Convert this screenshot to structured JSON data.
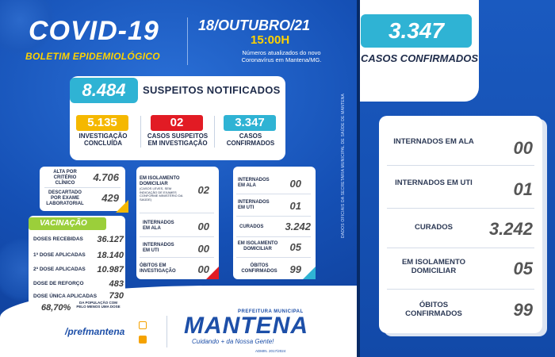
{
  "header": {
    "title": "COVID-19",
    "subtitle": "BOLETIM EPIDEMIOLÓGICO",
    "date": "18/OUTUBRO/21",
    "time": "15:00H",
    "update_note": "Números atualizados do novo Coronavírus em Mantena/MG."
  },
  "side_credit": "DADOS OFICIAIS DA SECRETARIA MUNICIPAL DE SAÚDE DE MANTENA",
  "suspects": {
    "total": "8.484",
    "total_label": "SUSPEITOS NOTIFICADOS",
    "investigation_done": "5.135",
    "investigation_done_label": "INVESTIGAÇÃO CONCLUÍDA",
    "under_investigation": "02",
    "under_investigation_label": "CASOS SUSPEITOS EM INVESTIGAÇÃO",
    "confirmed": "3.347",
    "confirmed_label": "CASOS CONFIRMADOS"
  },
  "discarded": {
    "clinical_label": "ALTA POR CRITÉRIO CLÍNICO",
    "clinical_value": "4.706",
    "lab_label": "DESCARTADO POR EXAME LABORATORIAL",
    "lab_value": "429"
  },
  "investigation_detail": {
    "home_isolation_label": "EM ISOLAMENTO DOMICILIAR",
    "home_isolation_note": "(CASOS LEVES, SEM INDICAÇÃO DE EXAMES CONFORME MINISTÉRIO DA SAÚDE)",
    "home_isolation_value": "02",
    "ward_label": "INTERNADOS EM ALA",
    "ward_value": "00",
    "icu_label": "INTERNADOS EM UTI",
    "icu_value": "00",
    "deaths_label": "ÓBITOS EM INVESTIGAÇÃO",
    "deaths_value": "00"
  },
  "confirmed_detail": {
    "ward_label": "INTERNADOS EM ALA",
    "ward_value": "00",
    "icu_label": "INTERNADOS EM UTI",
    "icu_value": "01",
    "cured_label": "CURADOS",
    "cured_value": "3.242",
    "isolation_label": "EM ISOLAMENTO DOMICILIAR",
    "isolation_value": "05",
    "deaths_label": "ÓBITOS CONFIRMADOS",
    "deaths_value": "99"
  },
  "vaccination": {
    "header": "VACINAÇÃO",
    "received_label": "DOSES RECEBIDAS",
    "received_value": "36.127",
    "first_label": "1ª DOSE APLICADAS",
    "first_value": "18.140",
    "second_label": "2ª DOSE APLICADAS",
    "second_value": "10.987",
    "booster_label": "DOSE DE REFORÇO",
    "booster_value": "483",
    "single_label": "DOSE ÚNICA APLICADAS",
    "single_value": "730",
    "percent_value": "68,70%",
    "percent_label": "DA POPULAÇÃO COM PELO MENOS UMA DOSE"
  },
  "footer": {
    "handle": "/prefmantena",
    "logo_top": "PREFEITURA MUNICIPAL",
    "logo_name": "MANTENA",
    "logo_slogan": "Cuidando + da Nossa Gente!",
    "logo_admin": "ADMIN. 2017/2024"
  },
  "right_panel": {
    "confirmed_value": "3.347",
    "confirmed_label": "CASOS CONFIRMADOS",
    "ward_label": "INTERNADOS EM ALA",
    "ward_value": "00",
    "icu_label": "INTERNADOS EM UTI",
    "icu_value": "01",
    "cured_label": "CURADOS",
    "cured_value": "3.242",
    "isolation_label": "EM ISOLAMENTO DOMICILIAR",
    "isolation_value": "05",
    "deaths_label": "ÓBITOS CONFIRMADOS",
    "deaths_value": "99"
  },
  "colors": {
    "blue_bg": "#1550b5",
    "cyan": "#2fb3d4",
    "yellow": "#f5b800",
    "red": "#e21b24",
    "green": "#9bcf3a",
    "white": "#ffffff"
  }
}
